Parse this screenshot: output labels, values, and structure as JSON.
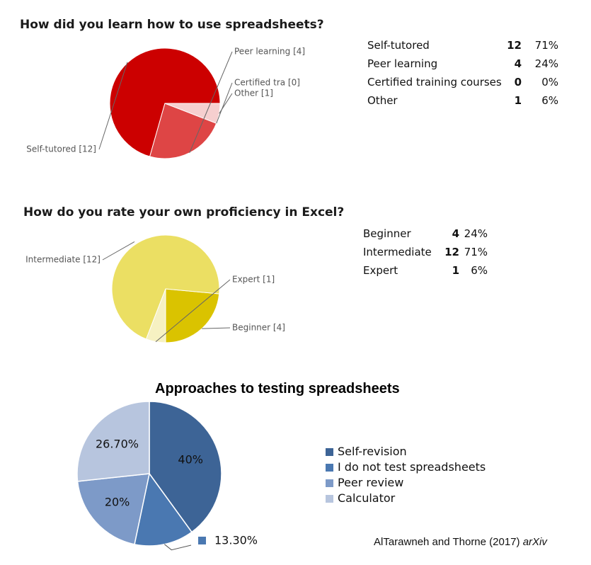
{
  "chart_data": [
    {
      "type": "pie",
      "title": "How did you learn how to use spreadsheets?",
      "slices": [
        {
          "label": "Self-tutored",
          "count": 12,
          "percent": "71%",
          "color": "#cc0000",
          "callout": "Self-tutored [12]"
        },
        {
          "label": "Peer learning",
          "count": 4,
          "percent": "24%",
          "color": "#de4545",
          "callout": "Peer learning [4]"
        },
        {
          "label": "Certified training courses",
          "count": 0,
          "percent": "0%",
          "color": "#ef9a9a",
          "callout": "Certified tra [0]"
        },
        {
          "label": "Other",
          "count": 1,
          "percent": "6%",
          "color": "#f6cfcf",
          "callout": "Other [1]"
        }
      ]
    },
    {
      "type": "pie",
      "title": "How do you rate your own proficiency in Excel?",
      "slices": [
        {
          "label": "Beginner",
          "count": 4,
          "percent": "24%",
          "color": "#dac300",
          "callout": "Beginner [4]"
        },
        {
          "label": "Intermediate",
          "count": 12,
          "percent": "71%",
          "color": "#ebdf63",
          "callout": "Intermediate [12]"
        },
        {
          "label": "Expert",
          "count": 1,
          "percent": "6%",
          "color": "#f6f1c2",
          "callout": "Expert [1]"
        }
      ]
    },
    {
      "type": "pie",
      "title": "Approaches to testing spreadsheets",
      "slices": [
        {
          "label": "Self-revision",
          "value": 40,
          "data_label": "40%",
          "color": "#3d6496"
        },
        {
          "label": "I do not test spreadsheets",
          "value": 13.3,
          "data_label": "13.30%",
          "color": "#4a78b1"
        },
        {
          "label": "Peer review",
          "value": 20,
          "data_label": "20%",
          "color": "#7d9ac8"
        },
        {
          "label": "Calculator",
          "value": 26.7,
          "data_label": "26.70%",
          "color": "#b7c5de"
        }
      ],
      "legend_position": "right"
    }
  ],
  "credit": {
    "text": "AlTarawneh and Thorne (2017) ",
    "source": "arXiv"
  }
}
